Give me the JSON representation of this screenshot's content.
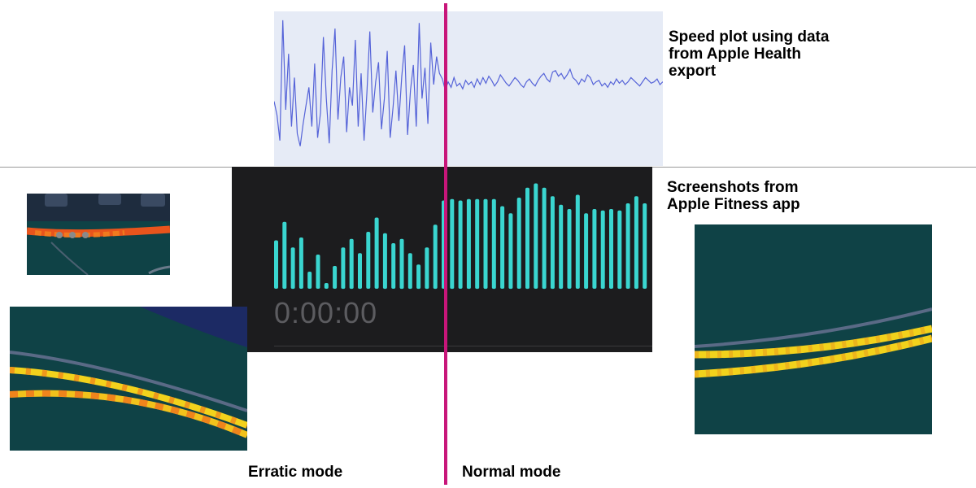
{
  "captions": {
    "speed_plot": "Speed plot using data\nfrom Apple Health\nexport",
    "screenshots": "Screenshots from\nApple Fitness app",
    "erratic": "Erratic mode",
    "normal": "Normal mode"
  },
  "fitness": {
    "timer": "0:00:00"
  },
  "colors": {
    "speed_line": "#5563d8",
    "speed_bg": "#e6ebf6",
    "fitness_bar": "#3ad6d0",
    "fitness_bg": "#1c1c1e",
    "mode_line": "#c8167a",
    "map_bg": "#0f4246",
    "route_yellow": "#f2d21c",
    "route_orange": "#ee6a1c"
  },
  "chart_data": [
    {
      "type": "line",
      "ylim": [
        0,
        100
      ],
      "series": [
        {
          "values": [
            38,
            28,
            10,
            96,
            32,
            72,
            20,
            55,
            15,
            6,
            22,
            35,
            48,
            20,
            65,
            12,
            30,
            84,
            40,
            8,
            60,
            90,
            25,
            55,
            70,
            16,
            48,
            35,
            82,
            20,
            58,
            10,
            44,
            88,
            30,
            52,
            66,
            18,
            40,
            74,
            12,
            34,
            60,
            24,
            56,
            78,
            14,
            46,
            64,
            20,
            94,
            40,
            62,
            22,
            80,
            50,
            70,
            58,
            54,
            46,
            52,
            48,
            55,
            49,
            51,
            47,
            53,
            50,
            52,
            48,
            54,
            50,
            55,
            51,
            56,
            53,
            49,
            52,
            57,
            54,
            51,
            49,
            52,
            55,
            53,
            50,
            48,
            52,
            54,
            51,
            49,
            53,
            56,
            58,
            54,
            52,
            59,
            60,
            56,
            58,
            54,
            57,
            61,
            55,
            53,
            50,
            54,
            52,
            57,
            55,
            50,
            52,
            53,
            49,
            51,
            48,
            52,
            50,
            54,
            51,
            53,
            50,
            52,
            55,
            53,
            51,
            49,
            52,
            55,
            53,
            51,
            52,
            54,
            50,
            52
          ]
        }
      ]
    },
    {
      "type": "bar",
      "values": [
        34,
        47,
        29,
        36,
        12,
        24,
        4,
        16,
        29,
        35,
        25,
        40,
        50,
        39,
        32,
        35,
        25,
        17,
        29,
        45,
        62,
        63,
        62,
        63,
        63,
        63,
        63,
        58,
        53,
        64,
        71,
        74,
        71,
        65,
        59,
        56,
        66,
        53,
        56,
        55,
        56,
        55,
        60,
        65,
        60
      ]
    }
  ]
}
